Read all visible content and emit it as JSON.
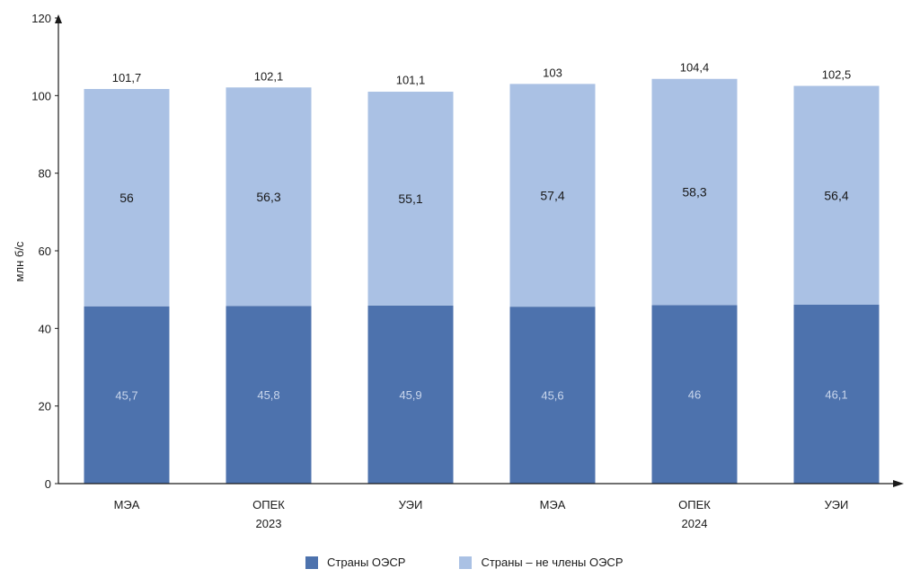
{
  "colors": {
    "oecd": "#4d72ad",
    "non_oecd": "#aac1e4",
    "axis": "#1a1a1a"
  },
  "chart_data": {
    "type": "bar",
    "stacked": true,
    "ylabel": "млн б/с",
    "ylim": [
      0,
      120
    ],
    "yticks": [
      0,
      20,
      40,
      60,
      80,
      100,
      120
    ],
    "categories": [
      "МЭА",
      "ОПЕК",
      "УЭИ",
      "МЭА",
      "ОПЕК",
      "УЭИ"
    ],
    "groups": [
      {
        "label": "2023",
        "span": [
          0,
          2
        ]
      },
      {
        "label": "2024",
        "span": [
          3,
          5
        ]
      }
    ],
    "series": [
      {
        "name": "Страны ОЭСР",
        "values": [
          45.7,
          45.8,
          45.9,
          45.6,
          46,
          46.1
        ],
        "value_labels": [
          "45,7",
          "45,8",
          "45,9",
          "45,6",
          "46",
          "46,1"
        ]
      },
      {
        "name": "Страны – не члены ОЭСР",
        "values": [
          56,
          56.3,
          55.1,
          57.4,
          58.3,
          56.4
        ],
        "value_labels": [
          "56",
          "56,3",
          "55,1",
          "57,4",
          "58,3",
          "56,4"
        ]
      }
    ],
    "totals": [
      101.7,
      102.1,
      101.1,
      103,
      104.4,
      102.5
    ],
    "total_labels": [
      "101,7",
      "102,1",
      "101,1",
      "103",
      "104,4",
      "102,5"
    ],
    "legend_position": "bottom",
    "grid": false
  },
  "legend": {
    "oecd": "Страны ОЭСР",
    "non_oecd": "Страны – не члены ОЭСР"
  }
}
